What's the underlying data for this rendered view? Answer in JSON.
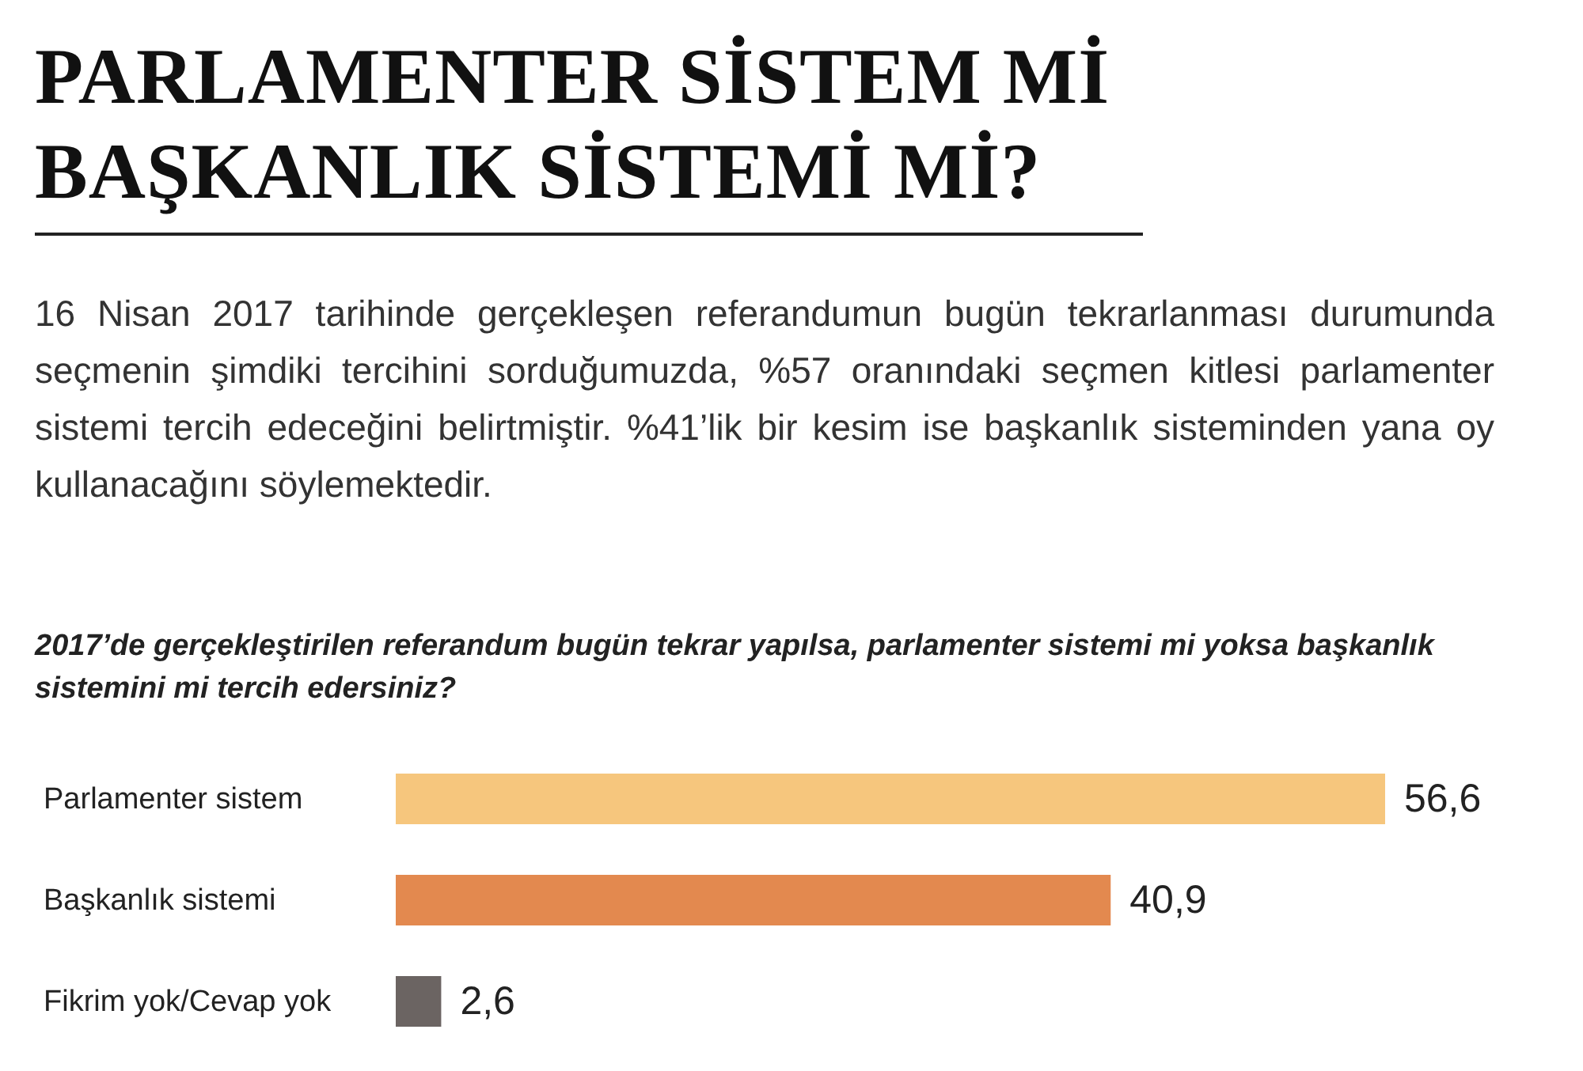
{
  "chart_data": {
    "type": "bar",
    "orientation": "horizontal",
    "title": "PARLAMENTER SİSTEM Mİ\nBAŞKANLIK SİSTEMİ Mİ?",
    "subtitle": "16 Nisan 2017 tarihinde gerçekleşen referandumun bugün tekrarlanması durumunda seçmenin şimdiki tercihini sorduğumuzda, %57 oranındaki seçmen kitlesi parlamenter sistemi tercih edeceğini belirtmiştir. %41’lik bir kesim ise başkanlık sisteminden yana oy kullanacağını söylemektedir.",
    "annotations": [
      "2017’de gerçekleştirilen referandum bugün tekrar yapılsa, parlamenter sistemi mi yoksa başkanlık sistemini mi tercih edersiniz?"
    ],
    "categories": [
      "Parlamenter sistem",
      "Başkanlık sistemi",
      "Fikrim yok/Cevap yok"
    ],
    "values": [
      56.6,
      40.9,
      2.6
    ],
    "colors": [
      "#f6c67d",
      "#e3894f",
      "#6b6462"
    ],
    "value_labels": [
      "56,6",
      "40,9",
      "2,6"
    ]
  }
}
